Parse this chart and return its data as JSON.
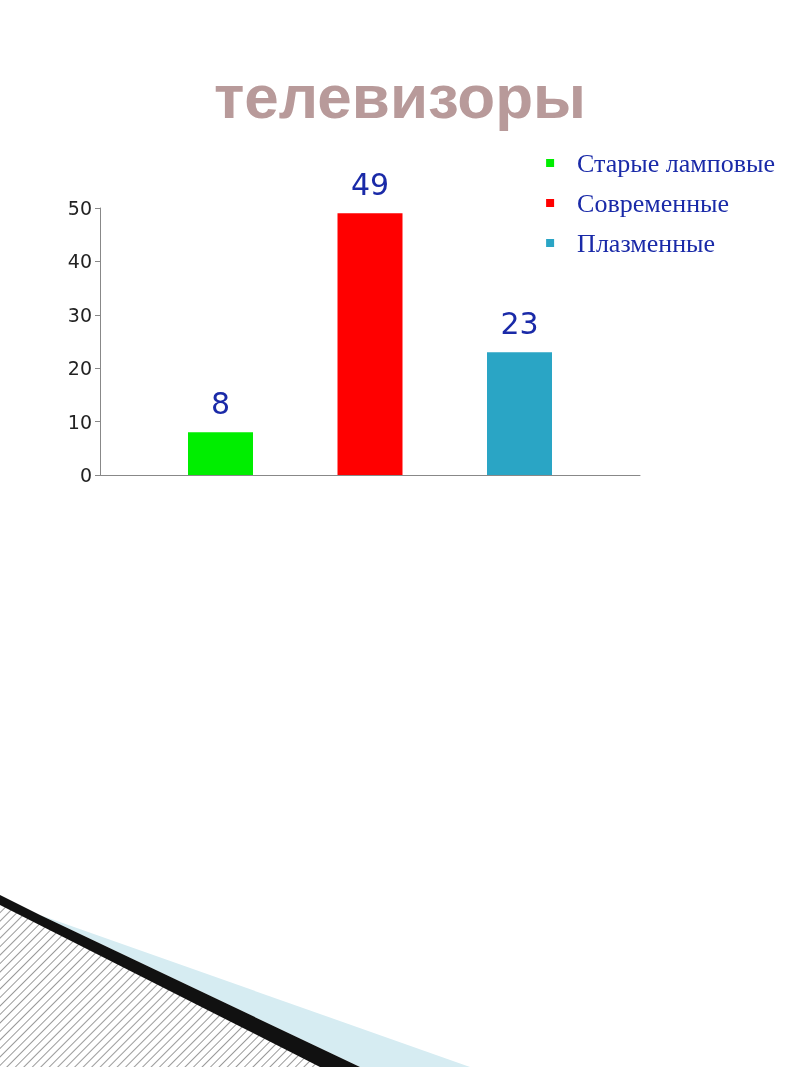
{
  "chart_data": {
    "type": "bar",
    "title": "телевизоры",
    "categories": [
      null
    ],
    "series": [
      {
        "name": "Старые ламповые",
        "color": "#00ee00",
        "values": [
          8
        ]
      },
      {
        "name": "Современные",
        "color": "#ff0000",
        "values": [
          49
        ]
      },
      {
        "name": "Плазменные",
        "color": "#2aa5c5",
        "values": [
          23
        ]
      }
    ],
    "ylim": [
      0,
      50
    ],
    "yticks": [
      0,
      10,
      20,
      30,
      40,
      50
    ],
    "data_labels": true,
    "legend": "top right"
  }
}
